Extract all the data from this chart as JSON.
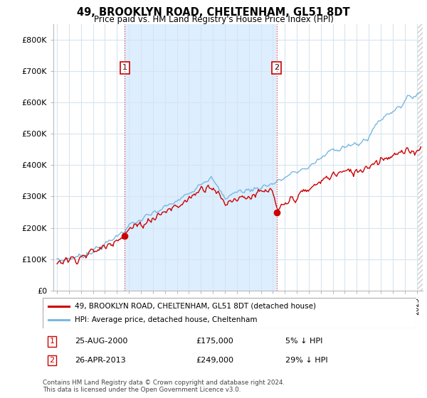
{
  "title": "49, BROOKLYN ROAD, CHELTENHAM, GL51 8DT",
  "subtitle": "Price paid vs. HM Land Registry's House Price Index (HPI)",
  "ylabel_ticks": [
    "£0",
    "£100K",
    "£200K",
    "£300K",
    "£400K",
    "£500K",
    "£600K",
    "£700K",
    "£800K"
  ],
  "ylim": [
    0,
    850000
  ],
  "xlim_start": 1994.7,
  "xlim_end": 2025.5,
  "transaction1_date": 2000.646,
  "transaction1_price": 175000,
  "transaction2_date": 2013.32,
  "transaction2_price": 249000,
  "legend_line1": "49, BROOKLYN ROAD, CHELTENHAM, GL51 8DT (detached house)",
  "legend_line2": "HPI: Average price, detached house, Cheltenham",
  "hpi_color": "#7ab8e0",
  "price_color": "#cc0000",
  "background_color": "#ffffff",
  "grid_color": "#d8e4f0",
  "shade_color": "#ddeeff",
  "footnote": "Contains HM Land Registry data © Crown copyright and database right 2024.\nThis data is licensed under the Open Government Licence v3.0."
}
